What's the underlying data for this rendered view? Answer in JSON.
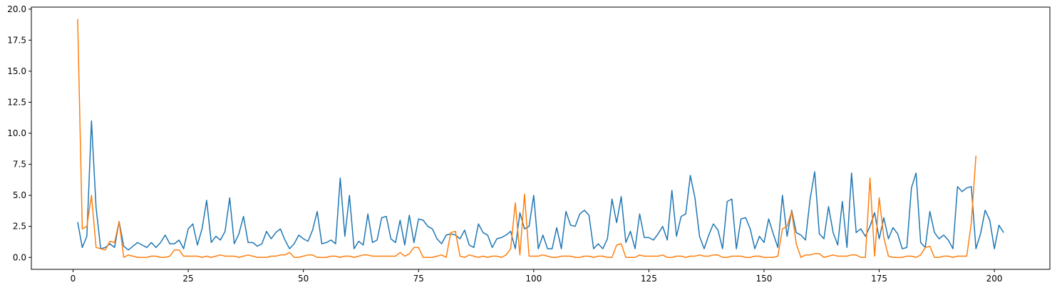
{
  "chart_data": {
    "type": "line",
    "xlim": [
      -9.05,
      212.05
    ],
    "ylim": [
      -0.96,
      20.16
    ],
    "xticks": [
      0,
      25,
      50,
      75,
      100,
      125,
      150,
      175,
      200
    ],
    "yticks": [
      {
        "value": 0,
        "label": "0.0"
      },
      2.5,
      {
        "value": 5,
        "label": "5.0"
      },
      7.5,
      {
        "value": 10,
        "label": "10.0"
      },
      12.5,
      {
        "value": 15,
        "label": "15.0"
      },
      17.5,
      {
        "value": 20,
        "label": "20.0"
      }
    ],
    "grid": false,
    "series": [
      {
        "color": "#1f77b4",
        "x": [
          1,
          2,
          3,
          4,
          5,
          6,
          7,
          8,
          9,
          10,
          11,
          12,
          13,
          14,
          15,
          16,
          17,
          18,
          19,
          20,
          21,
          22,
          23,
          24,
          25,
          26,
          27,
          28,
          29,
          30,
          31,
          32,
          33,
          34,
          35,
          36,
          37,
          38,
          39,
          40,
          41,
          42,
          43,
          44,
          45,
          46,
          47,
          48,
          49,
          50,
          51,
          52,
          53,
          54,
          55,
          56,
          57,
          58,
          59,
          60,
          61,
          62,
          63,
          64,
          65,
          66,
          67,
          68,
          69,
          70,
          71,
          72,
          73,
          74,
          75,
          76,
          77,
          78,
          79,
          80,
          81,
          82,
          83,
          84,
          85,
          86,
          87,
          88,
          89,
          90,
          91,
          92,
          93,
          94,
          95,
          96,
          97,
          98,
          99,
          100,
          101,
          102,
          103,
          104,
          105,
          106,
          107,
          108,
          109,
          110,
          111,
          112,
          113,
          114,
          115,
          116,
          117,
          118,
          119,
          120,
          121,
          122,
          123,
          124,
          125,
          126,
          127,
          128,
          129,
          130,
          131,
          132,
          133,
          134,
          135,
          136,
          137,
          138,
          139,
          140,
          141,
          142,
          143,
          144,
          145,
          146,
          147,
          148,
          149,
          150,
          151,
          152,
          153,
          154,
          155,
          156,
          157,
          158,
          159,
          160,
          161,
          162,
          163,
          164,
          165,
          166,
          167,
          168,
          169,
          170,
          171,
          172,
          173,
          174,
          175,
          176,
          177,
          178,
          179,
          180,
          181,
          182,
          183,
          184,
          185,
          186,
          187,
          188,
          189,
          190,
          191,
          192,
          193,
          194,
          195,
          196,
          197,
          198,
          199,
          200,
          201,
          202
        ],
        "values": [
          2.85,
          0.8,
          1.7,
          11.0,
          4.0,
          0.7,
          0.8,
          1.1,
          0.8,
          2.9,
          0.9,
          0.6,
          0.9,
          1.2,
          1.0,
          0.8,
          1.2,
          0.8,
          1.2,
          1.8,
          1.1,
          1.1,
          1.4,
          0.7,
          2.3,
          2.7,
          1.0,
          2.3,
          4.6,
          1.2,
          1.7,
          1.4,
          2.1,
          4.8,
          1.1,
          1.9,
          3.3,
          1.2,
          1.2,
          0.9,
          1.1,
          2.1,
          1.5,
          2.0,
          2.3,
          1.4,
          0.7,
          1.1,
          1.8,
          1.5,
          1.3,
          2.2,
          3.7,
          1.1,
          1.2,
          1.4,
          1.1,
          6.4,
          1.7,
          5.0,
          0.7,
          1.3,
          1.0,
          3.5,
          1.2,
          1.4,
          3.2,
          3.3,
          1.5,
          1.2,
          3.0,
          1.0,
          3.4,
          1.2,
          3.1,
          3.0,
          2.5,
          2.3,
          1.5,
          1.1,
          1.8,
          1.9,
          1.8,
          1.5,
          2.2,
          1.0,
          0.8,
          2.7,
          2.0,
          1.8,
          0.8,
          1.5,
          1.6,
          1.8,
          2.1,
          0.7,
          3.6,
          2.3,
          2.5,
          5.0,
          0.7,
          1.8,
          0.7,
          0.7,
          2.4,
          0.7,
          3.7,
          2.6,
          2.5,
          3.5,
          3.8,
          3.4,
          0.7,
          1.1,
          0.7,
          1.5,
          4.7,
          2.8,
          4.9,
          1.2,
          2.1,
          0.7,
          3.5,
          1.6,
          1.6,
          1.4,
          1.9,
          2.5,
          1.4,
          5.4,
          1.7,
          3.3,
          3.5,
          6.6,
          4.8,
          1.7,
          0.7,
          1.8,
          2.7,
          2.2,
          0.7,
          4.5,
          4.7,
          0.7,
          3.1,
          3.2,
          2.3,
          0.7,
          1.7,
          1.2,
          3.1,
          1.9,
          0.8,
          5.0,
          1.7,
          3.8,
          2.0,
          1.8,
          1.4,
          4.7,
          6.9,
          1.9,
          1.5,
          4.1,
          2.0,
          1.0,
          4.5,
          0.8,
          6.8,
          2.0,
          2.3,
          1.7,
          2.5,
          3.6,
          1.5,
          3.2,
          1.5,
          2.4,
          1.9,
          0.7,
          0.8,
          5.6,
          6.8,
          1.2,
          0.8,
          3.7,
          2.0,
          1.5,
          1.8,
          1.4,
          0.7,
          5.7,
          5.3,
          5.6,
          5.7,
          0.7,
          1.9,
          3.8,
          3.0,
          0.7,
          2.6,
          2.0
        ]
      },
      {
        "color": "#ff7f0e",
        "x": [
          1,
          2,
          3,
          4,
          5,
          6,
          7,
          8,
          9,
          10,
          11,
          12,
          13,
          14,
          15,
          16,
          17,
          18,
          19,
          20,
          21,
          22,
          23,
          24,
          25,
          26,
          27,
          28,
          29,
          30,
          31,
          32,
          33,
          34,
          35,
          36,
          37,
          38,
          39,
          40,
          41,
          42,
          43,
          44,
          45,
          46,
          47,
          48,
          49,
          50,
          51,
          52,
          53,
          54,
          55,
          56,
          57,
          58,
          59,
          60,
          61,
          62,
          63,
          64,
          65,
          66,
          67,
          68,
          69,
          70,
          71,
          72,
          73,
          74,
          75,
          76,
          77,
          78,
          79,
          80,
          81,
          82,
          83,
          84,
          85,
          86,
          87,
          88,
          89,
          90,
          91,
          92,
          93,
          94,
          95,
          96,
          97,
          98,
          99,
          100,
          101,
          102,
          103,
          104,
          105,
          106,
          107,
          108,
          109,
          110,
          111,
          112,
          113,
          114,
          115,
          116,
          117,
          118,
          119,
          120,
          121,
          122,
          123,
          124,
          125,
          126,
          127,
          128,
          129,
          130,
          131,
          132,
          133,
          134,
          135,
          136,
          137,
          138,
          139,
          140,
          141,
          142,
          143,
          144,
          145,
          146,
          147,
          148,
          149,
          150,
          151,
          152,
          153,
          154,
          155,
          156,
          157,
          158,
          159,
          160,
          161,
          162,
          163,
          164,
          165,
          166,
          167,
          168,
          169,
          170,
          171,
          172,
          173,
          174,
          175,
          176,
          177,
          178,
          179,
          180,
          181,
          182,
          183,
          184,
          185,
          186,
          187,
          188,
          189,
          190,
          191,
          192,
          193,
          194,
          195,
          196
        ],
        "values": [
          19.2,
          2.3,
          2.5,
          5.0,
          0.8,
          0.7,
          0.6,
          1.3,
          1.2,
          2.9,
          0.0,
          0.2,
          0.1,
          0.0,
          0.0,
          0.0,
          0.1,
          0.1,
          0.0,
          0.0,
          0.1,
          0.6,
          0.6,
          0.1,
          0.1,
          0.1,
          0.1,
          0.0,
          0.1,
          0.0,
          0.1,
          0.2,
          0.1,
          0.1,
          0.1,
          0.0,
          0.1,
          0.2,
          0.1,
          0.0,
          0.0,
          0.0,
          0.1,
          0.1,
          0.2,
          0.2,
          0.4,
          0.0,
          0.0,
          0.1,
          0.2,
          0.2,
          0.0,
          0.0,
          0.0,
          0.1,
          0.1,
          0.0,
          0.1,
          0.1,
          0.0,
          0.1,
          0.2,
          0.2,
          0.1,
          0.1,
          0.1,
          0.1,
          0.1,
          0.1,
          0.4,
          0.1,
          0.3,
          0.8,
          0.8,
          0.0,
          0.0,
          0.0,
          0.1,
          0.2,
          0.0,
          2.0,
          2.1,
          0.1,
          0.0,
          0.2,
          0.1,
          0.0,
          0.1,
          0.0,
          0.1,
          0.1,
          0.0,
          0.2,
          0.7,
          4.4,
          0.2,
          5.1,
          0.1,
          0.1,
          0.1,
          0.2,
          0.1,
          0.0,
          0.0,
          0.1,
          0.1,
          0.1,
          0.0,
          0.0,
          0.1,
          0.1,
          0.0,
          0.1,
          0.1,
          0.0,
          0.0,
          1.0,
          1.1,
          0.0,
          0.0,
          0.0,
          0.2,
          0.1,
          0.1,
          0.1,
          0.1,
          0.2,
          0.0,
          0.0,
          0.1,
          0.1,
          0.0,
          0.1,
          0.1,
          0.2,
          0.1,
          0.1,
          0.2,
          0.2,
          0.0,
          0.0,
          0.1,
          0.1,
          0.1,
          0.0,
          0.0,
          0.1,
          0.1,
          0.0,
          0.0,
          0.0,
          0.1,
          2.3,
          2.5,
          3.7,
          1.1,
          0.0,
          0.2,
          0.2,
          0.3,
          0.3,
          0.0,
          0.1,
          0.2,
          0.1,
          0.1,
          0.1,
          0.2,
          0.2,
          0.0,
          0.0,
          6.4,
          0.1,
          4.8,
          1.6,
          0.1,
          0.0,
          0.0,
          0.0,
          0.1,
          0.1,
          0.0,
          0.2,
          0.8,
          0.9,
          0.0,
          0.0,
          0.1,
          0.1,
          0.0,
          0.1,
          0.1,
          0.1,
          2.8,
          8.2
        ]
      }
    ]
  }
}
